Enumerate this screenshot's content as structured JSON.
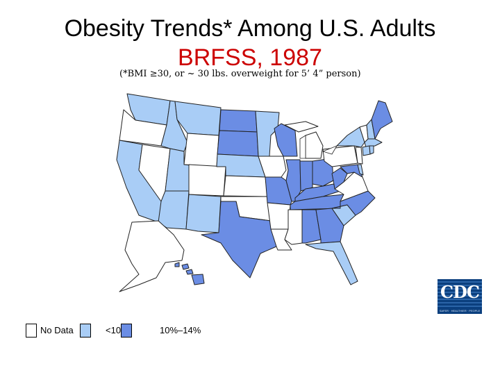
{
  "title": "Obesity Trends* Among U.S. Adults",
  "subtitle_red": "BRFSS, 1987",
  "footnote": "(*BMI ≥30, or ~ 30 lbs. overweight for 5’ 4” person)",
  "colors": {
    "no_data": "#ffffff",
    "lt10": "#a9cdf6",
    "10to14": "#6b8de4",
    "border": "#222222"
  },
  "legend": [
    {
      "key": "no_data",
      "label": "No Data"
    },
    {
      "key": "lt10",
      "label": "<10%"
    },
    {
      "key": "10to14",
      "label": "10%–14%"
    }
  ],
  "logo": {
    "text": "CDC",
    "tagline": "SAFER · HEALTHIER · PEOPLE"
  },
  "map_data": {
    "WA": "lt10",
    "OR": "no_data",
    "CA": "lt10",
    "NV": "no_data",
    "ID": "lt10",
    "MT": "lt10",
    "WY": "no_data",
    "UT": "lt10",
    "AZ": "lt10",
    "CO": "no_data",
    "NM": "lt10",
    "ND": "10to14",
    "SD": "10to14",
    "NE": "lt10",
    "KS": "no_data",
    "OK": "no_data",
    "TX": "10to14",
    "MN": "lt10",
    "IA": "no_data",
    "MO": "10to14",
    "AR": "no_data",
    "LA": "no_data",
    "WI": "10to14",
    "IL": "10to14",
    "MI": "no_data",
    "IN": "10to14",
    "OH": "10to14",
    "KY": "10to14",
    "TN": "10to14",
    "MS": "no_data",
    "AL": "10to14",
    "GA": "10to14",
    "FL": "lt10",
    "SC": "lt10",
    "NC": "10to14",
    "VA": "no_data",
    "WV": "10to14",
    "MD": "10to14",
    "DE": "lt10",
    "DC": "lt10",
    "PA": "no_data",
    "NJ": "no_data",
    "NY": "lt10",
    "CT": "lt10",
    "RI": "lt10",
    "MA": "lt10",
    "VT": "no_data",
    "NH": "lt10",
    "ME": "10to14",
    "AK": "no_data",
    "HI": "10to14"
  }
}
